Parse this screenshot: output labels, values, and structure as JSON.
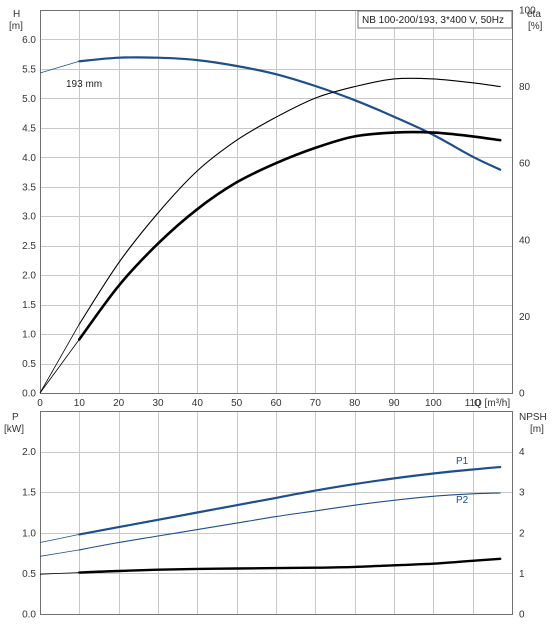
{
  "title": "NB 100-200/193, 3*400 V, 50Hz",
  "colors": {
    "blue": "#1f4e8c",
    "black": "#000000",
    "grid": "#c8c8c8"
  },
  "chart_data": [
    {
      "type": "line",
      "panel": "top",
      "xlabel": "Q [m³/h]",
      "xlim": [
        0,
        120
      ],
      "xticks": [
        "0",
        "10",
        "20",
        "30",
        "40",
        "50",
        "60",
        "70",
        "80",
        "90",
        "100",
        "110"
      ],
      "left_axis": {
        "label_line1": "H",
        "label_line2": "[m]",
        "ylim": [
          0,
          6.5
        ],
        "ticks": [
          "0.0",
          "0.5",
          "1.0",
          "1.5",
          "2.0",
          "2.5",
          "3.0",
          "3.5",
          "4.0",
          "4.5",
          "5.0",
          "5.5",
          "6.0"
        ]
      },
      "right_axis": {
        "label_line1": "eta",
        "label_line2": "[%]",
        "ylim": [
          0,
          100
        ],
        "ticks": [
          "0",
          "20",
          "40",
          "60",
          "80",
          "100"
        ]
      },
      "series": [
        {
          "name": "193 mm",
          "axis": "left",
          "color": "#1f4e8c",
          "width": 2.2,
          "x": [
            0,
            10,
            20,
            30,
            40,
            50,
            60,
            70,
            80,
            90,
            100,
            110,
            117
          ],
          "y": [
            5.43,
            5.63,
            5.69,
            5.69,
            5.65,
            5.55,
            5.41,
            5.21,
            4.97,
            4.69,
            4.38,
            4.01,
            3.79
          ]
        },
        {
          "name": "",
          "axis": "right",
          "color": "#000000",
          "width": 1.1,
          "x": [
            0,
            10,
            20,
            30,
            40,
            50,
            60,
            70,
            80,
            90,
            100,
            110,
            117
          ],
          "y": [
            0,
            18,
            34,
            47,
            58,
            66,
            72,
            77,
            80,
            82,
            82,
            81,
            80
          ]
        },
        {
          "name": "",
          "axis": "right",
          "color": "#000000",
          "width": 2.6,
          "x": [
            0,
            10,
            20,
            30,
            40,
            50,
            60,
            70,
            80,
            90,
            100,
            110,
            117
          ],
          "y": [
            0,
            14,
            28,
            39,
            48,
            55,
            60,
            64,
            67,
            68,
            68,
            67,
            66
          ]
        }
      ]
    },
    {
      "type": "line",
      "panel": "bottom",
      "xlim": [
        0,
        120
      ],
      "left_axis": {
        "label_line1": "P",
        "label_line2": "[kW]",
        "ylim": [
          0,
          2.5
        ],
        "ticks": [
          "0.0",
          "0.5",
          "1.0",
          "1.5",
          "2.0"
        ]
      },
      "right_axis": {
        "label_line1": "NPSH",
        "label_line2": "[m]",
        "ylim": [
          0,
          5
        ],
        "ticks": [
          "0",
          "1",
          "2",
          "3",
          "4"
        ]
      },
      "series": [
        {
          "name": "P1",
          "axis": "left",
          "color": "#1f4e8c",
          "width": 2.2,
          "x": [
            0,
            10,
            20,
            30,
            40,
            50,
            60,
            70,
            80,
            90,
            100,
            110,
            117
          ],
          "y": [
            0.88,
            0.98,
            1.07,
            1.16,
            1.25,
            1.34,
            1.43,
            1.52,
            1.6,
            1.67,
            1.73,
            1.78,
            1.81
          ]
        },
        {
          "name": "P2",
          "axis": "left",
          "color": "#1f4e8c",
          "width": 1.1,
          "x": [
            0,
            10,
            20,
            30,
            40,
            50,
            60,
            70,
            80,
            90,
            100,
            110,
            117
          ],
          "y": [
            0.71,
            0.79,
            0.88,
            0.96,
            1.04,
            1.12,
            1.2,
            1.27,
            1.34,
            1.4,
            1.45,
            1.48,
            1.49
          ]
        },
        {
          "name": "",
          "axis": "right",
          "color": "#000000",
          "width": 2.4,
          "x": [
            0,
            10,
            20,
            30,
            40,
            50,
            60,
            70,
            80,
            90,
            100,
            110,
            117
          ],
          "y": [
            0.98,
            1.02,
            1.06,
            1.09,
            1.11,
            1.12,
            1.13,
            1.14,
            1.16,
            1.2,
            1.24,
            1.31,
            1.36
          ]
        }
      ]
    }
  ]
}
